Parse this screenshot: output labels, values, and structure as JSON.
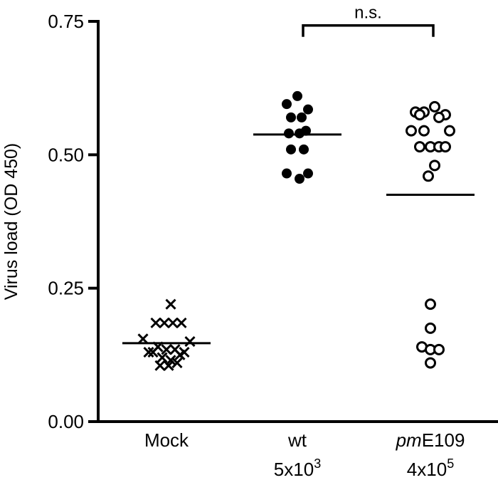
{
  "chart_data": {
    "type": "scatter",
    "title": "",
    "ylabel": "Virus load (OD 450)",
    "ylim": [
      0,
      0.75
    ],
    "yticks": [
      "0.00",
      "0.25",
      "0.50",
      "0.75"
    ],
    "grid": false,
    "categories": [
      {
        "id": "mock",
        "line1": "Mock",
        "line2_base": "",
        "line2_exp": ""
      },
      {
        "id": "wt",
        "line1": "wt",
        "line2_base": "5x10",
        "line2_exp": "3"
      },
      {
        "id": "pm",
        "line1_italic": "pm",
        "line1": "E109",
        "line2_base": "4x10",
        "line2_exp": "5"
      }
    ],
    "series": [
      {
        "category": "mock",
        "marker": "cross",
        "mean": 0.147,
        "points": [
          [
            -0.33,
            0.155
          ],
          [
            -0.25,
            0.13
          ],
          [
            -0.19,
            0.13
          ],
          [
            -0.12,
            0.14
          ],
          [
            -0.06,
            0.12
          ],
          [
            0.0,
            0.135
          ],
          [
            0.06,
            0.115
          ],
          [
            0.12,
            0.135
          ],
          [
            0.19,
            0.125
          ],
          [
            0.25,
            0.13
          ],
          [
            0.33,
            0.15
          ],
          [
            -0.15,
            0.185
          ],
          [
            -0.03,
            0.185
          ],
          [
            0.09,
            0.185
          ],
          [
            0.21,
            0.185
          ],
          [
            -0.09,
            0.105
          ],
          [
            0.03,
            0.105
          ],
          [
            0.15,
            0.11
          ],
          [
            0.06,
            0.22
          ]
        ]
      },
      {
        "category": "wt",
        "marker": "filled-circle",
        "mean": 0.538,
        "points": [
          [
            -0.15,
            0.595
          ],
          [
            0.0,
            0.61
          ],
          [
            0.15,
            0.585
          ],
          [
            -0.09,
            0.57
          ],
          [
            0.06,
            0.57
          ],
          [
            -0.12,
            0.54
          ],
          [
            0.03,
            0.54
          ],
          [
            0.12,
            0.545
          ],
          [
            -0.09,
            0.51
          ],
          [
            0.09,
            0.51
          ],
          [
            -0.15,
            0.465
          ],
          [
            0.03,
            0.455
          ],
          [
            0.15,
            0.465
          ]
        ]
      },
      {
        "category": "pm",
        "marker": "open-circle",
        "mean": 0.425,
        "points": [
          [
            -0.21,
            0.58
          ],
          [
            -0.09,
            0.58
          ],
          [
            0.06,
            0.59
          ],
          [
            0.21,
            0.575
          ],
          [
            -0.15,
            0.575
          ],
          [
            0.12,
            0.57
          ],
          [
            -0.27,
            0.545
          ],
          [
            -0.09,
            0.545
          ],
          [
            0.27,
            0.545
          ],
          [
            -0.15,
            0.515
          ],
          [
            0.0,
            0.515
          ],
          [
            0.12,
            0.515
          ],
          [
            0.21,
            0.515
          ],
          [
            0.06,
            0.48
          ],
          [
            -0.03,
            0.46
          ],
          [
            0.0,
            0.22
          ],
          [
            0.0,
            0.175
          ],
          [
            -0.12,
            0.14
          ],
          [
            0.0,
            0.135
          ],
          [
            0.12,
            0.135
          ],
          [
            0.0,
            0.11
          ]
        ]
      }
    ],
    "significance": {
      "from": "wt",
      "to": "pm",
      "label": "n.s.",
      "y": 0.745
    }
  }
}
